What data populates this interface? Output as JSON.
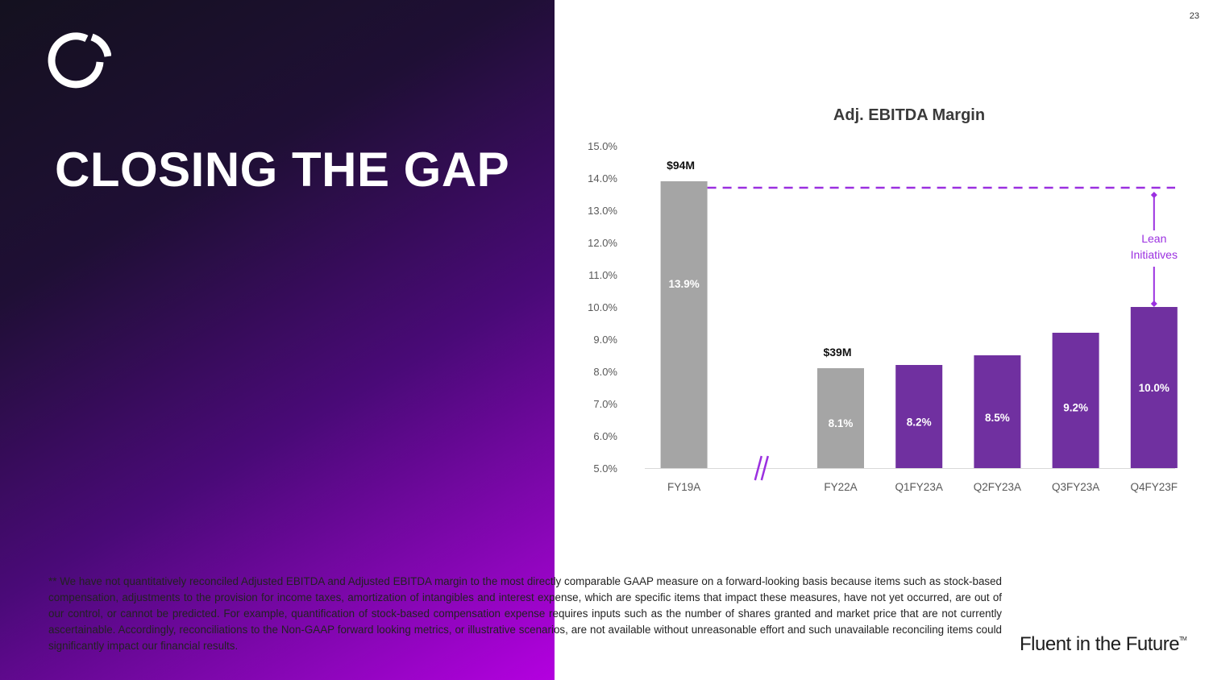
{
  "page": {
    "number": "23"
  },
  "title": "CLOSING THE GAP",
  "brand": {
    "text": "Fluent in the Future",
    "mark": "TM"
  },
  "colors": {
    "gray_bar": "#a5a5a5",
    "purple_bar": "#7030a0",
    "accent": "#9b30e0"
  },
  "footnote": "** We have not quantitatively reconciled Adjusted EBITDA and Adjusted EBITDA margin to the most directly comparable GAAP measure on a forward-looking basis because items such as stock-based compensation, adjustments to the provision for income taxes, amortization of intangibles and interest expense, which are specific items that impact these measures, have not yet occurred, are out of our control, or cannot be predicted. For example, quantification of stock-based compensation expense requires inputs such as the number of shares granted and market price that are not currently ascertainable. Accordingly, reconciliations to the Non-GAAP forward looking metrics, or illustrative scenarios, are not available without unreasonable effort and such unavailable reconciling items could significantly impact our financial results.",
  "chart_data": {
    "type": "bar",
    "title": "Adj. EBITDA Margin",
    "categories": [
      "FY19A",
      "FY22A",
      "Q1FY23A",
      "Q2FY23A",
      "Q3FY23A",
      "Q4FY23F"
    ],
    "values": [
      13.9,
      8.1,
      8.2,
      8.5,
      9.2,
      10.0
    ],
    "value_labels": [
      "13.9%",
      "8.1%",
      "8.2%",
      "8.5%",
      "9.2%",
      "10.0%"
    ],
    "colors": [
      "gray",
      "gray",
      "purple",
      "purple",
      "purple",
      "purple"
    ],
    "amount_labels": [
      "$94M",
      "$39M",
      "",
      "",
      "",
      ""
    ],
    "yticks": [
      "5.0%",
      "6.0%",
      "7.0%",
      "8.0%",
      "9.0%",
      "10.0%",
      "11.0%",
      "12.0%",
      "13.0%",
      "14.0%",
      "15.0%"
    ],
    "ylim": [
      5.0,
      15.0
    ],
    "axis_break_symbol": "//",
    "reference_line": {
      "value": 13.9,
      "style": "dashed"
    },
    "annotation": {
      "line1": "Lean",
      "line2": "Initiatives",
      "from": 10.0,
      "to": 13.9
    },
    "xlabel": "",
    "ylabel": "",
    "grid": false,
    "legend": "none"
  }
}
